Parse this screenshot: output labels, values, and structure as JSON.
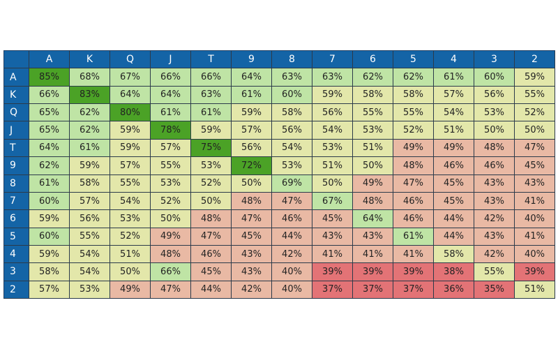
{
  "chart_data": {
    "type": "heatmap",
    "columns": [
      "A",
      "K",
      "Q",
      "J",
      "T",
      "9",
      "8",
      "7",
      "6",
      "5",
      "4",
      "3",
      "2"
    ],
    "rows": [
      "A",
      "K",
      "Q",
      "J",
      "T",
      "9",
      "8",
      "7",
      "6",
      "5",
      "4",
      "3",
      "2"
    ],
    "values": [
      [
        85,
        68,
        67,
        66,
        66,
        64,
        63,
        63,
        62,
        62,
        61,
        60,
        59
      ],
      [
        66,
        83,
        64,
        64,
        63,
        61,
        60,
        59,
        58,
        58,
        57,
        56,
        55
      ],
      [
        65,
        62,
        80,
        61,
        61,
        59,
        58,
        56,
        55,
        55,
        54,
        53,
        52
      ],
      [
        65,
        62,
        59,
        78,
        59,
        57,
        56,
        54,
        53,
        52,
        51,
        50,
        50
      ],
      [
        64,
        61,
        59,
        57,
        75,
        56,
        54,
        53,
        51,
        49,
        49,
        48,
        47
      ],
      [
        62,
        59,
        57,
        55,
        53,
        72,
        53,
        51,
        50,
        48,
        46,
        46,
        45
      ],
      [
        61,
        58,
        55,
        53,
        52,
        50,
        69,
        50,
        49,
        47,
        45,
        43,
        43
      ],
      [
        60,
        57,
        54,
        52,
        50,
        48,
        47,
        67,
        48,
        46,
        45,
        43,
        41
      ],
      [
        59,
        56,
        53,
        50,
        48,
        47,
        46,
        45,
        64,
        46,
        44,
        42,
        40
      ],
      [
        60,
        55,
        52,
        49,
        47,
        45,
        44,
        43,
        43,
        61,
        44,
        43,
        41
      ],
      [
        59,
        54,
        51,
        48,
        46,
        43,
        42,
        41,
        41,
        41,
        58,
        42,
        40
      ],
      [
        58,
        54,
        50,
        66,
        45,
        43,
        40,
        39,
        39,
        39,
        38,
        55,
        39
      ],
      [
        57,
        53,
        49,
        47,
        44,
        42,
        40,
        37,
        37,
        37,
        36,
        35,
        51
      ]
    ],
    "value_suffix": "%",
    "colors": {
      "header_bg": "#1464a6",
      "header_text": "#ffffff",
      "diag_dark": "#4ba226",
      "green_light": "#bfe4a5",
      "yellow": "#e3e7aa",
      "salmon": "#e9b9a4",
      "red": "#e37376"
    },
    "title": "",
    "xlabel": "",
    "ylabel": ""
  }
}
